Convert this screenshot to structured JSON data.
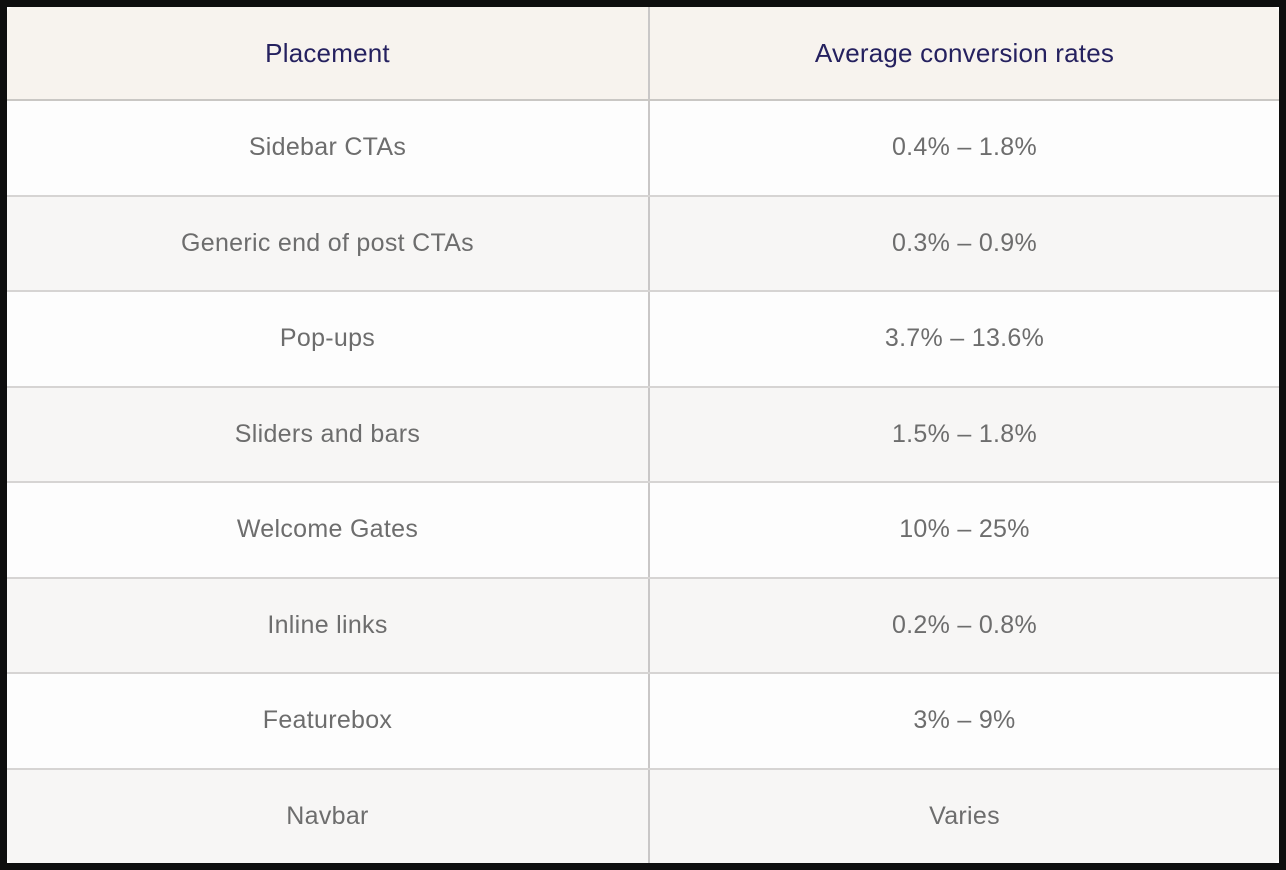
{
  "chart_data": {
    "type": "table",
    "columns": [
      "Placement",
      "Average conversion rates"
    ],
    "rows": [
      [
        "Sidebar CTAs",
        "0.4% – 1.8%"
      ],
      [
        "Generic end of post CTAs",
        "0.3% – 0.9%"
      ],
      [
        "Pop-ups",
        "3.7% – 13.6%"
      ],
      [
        "Sliders and bars",
        "1.5% – 1.8%"
      ],
      [
        "Welcome Gates",
        "10% – 25%"
      ],
      [
        "Inline links",
        "0.2% – 0.8%"
      ],
      [
        "Featurebox",
        "3% – 9%"
      ],
      [
        "Navbar",
        "Varies"
      ]
    ]
  },
  "colors": {
    "border_outer": "#0e0e0e",
    "header_bg": "#f7f3ee",
    "header_text": "#25215f",
    "row_text": "#6d6d6d",
    "row_bg_odd": "#fdfdfd",
    "row_bg_even": "#f7f6f5",
    "grid_line": "#d6d4d3",
    "col_line": "#c9c7c7",
    "header_line": "#c9c7c4"
  }
}
